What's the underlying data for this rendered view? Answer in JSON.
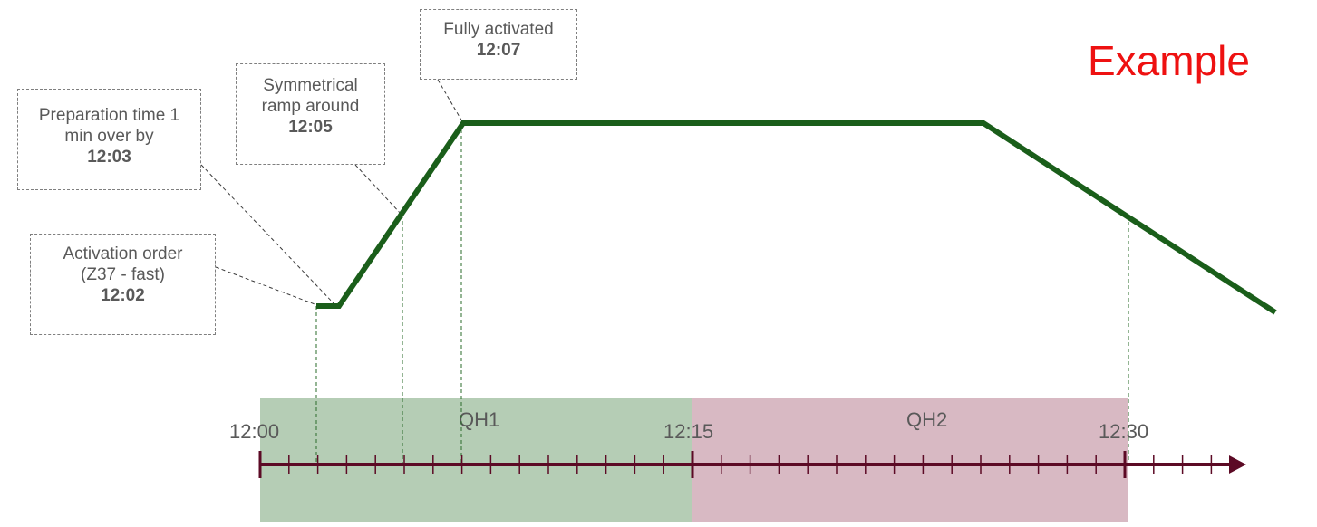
{
  "example_label": "Example",
  "callouts": {
    "activation": {
      "line1": "Activation order",
      "line2": "(Z37 - fast)",
      "time": "12:02"
    },
    "preparation": {
      "line1": "Preparation time 1",
      "line2": "min over by",
      "time": "12:03"
    },
    "symmetrical": {
      "line1": "Symmetrical",
      "line2": "ramp around",
      "time": "12:05"
    },
    "fully": {
      "line1": "Fully activated",
      "time": "12:07"
    }
  },
  "timeline": {
    "tick_labels": [
      "12:00",
      "12:15",
      "12:30"
    ],
    "quarter_hours": [
      {
        "label": "QH1",
        "color": "#b5cdb5"
      },
      {
        "label": "QH2",
        "color": "#d8b9c3"
      }
    ]
  },
  "colors": {
    "ramp_line": "#1a5e1a",
    "axis": "#5c0a25",
    "example_text": "#ee1111"
  }
}
